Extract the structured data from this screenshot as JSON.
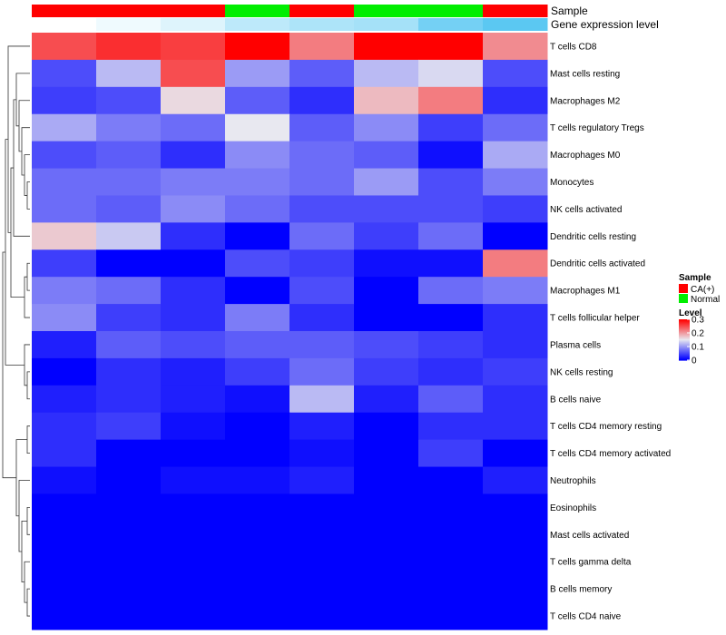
{
  "chart_data": {
    "type": "heatmap",
    "annotation_labels": [
      "Sample",
      "Gene expression level"
    ],
    "columns": [
      {
        "sample": "CA(+)",
        "expression": 0.0
      },
      {
        "sample": "CA(+)",
        "expression": 0.1
      },
      {
        "sample": "CA(+)",
        "expression": 0.2
      },
      {
        "sample": "Normal",
        "expression": 0.4
      },
      {
        "sample": "CA(+)",
        "expression": 0.5
      },
      {
        "sample": "Normal",
        "expression": 0.55
      },
      {
        "sample": "Normal",
        "expression": 0.85
      },
      {
        "sample": "CA(+)",
        "expression": 1.0
      }
    ],
    "rows": [
      "T cells CD8",
      "Mast cells resting",
      "Macrophages M2",
      "T cells regulatory  Tregs",
      "Macrophages M0",
      "Monocytes",
      "NK cells activated",
      "Dendritic cells resting",
      "Dendritic cells activated",
      "Macrophages M1",
      "T cells follicular helper",
      "Plasma cells",
      "NK cells resting",
      "B cells naive",
      "T cells CD4 memory resting",
      "T cells CD4 memory activated",
      "Neutrophils",
      "Eosinophils",
      "Mast cells activated",
      "T cells gamma delta",
      "B cells memory",
      "T cells CD4 naive"
    ],
    "values": [
      [
        0.25,
        0.27,
        0.26,
        0.3,
        0.22,
        0.3,
        0.3,
        0.21
      ],
      [
        0.05,
        0.12,
        0.25,
        0.1,
        0.06,
        0.12,
        0.14,
        0.05
      ],
      [
        0.04,
        0.05,
        0.16,
        0.06,
        0.03,
        0.18,
        0.22,
        0.03
      ],
      [
        0.11,
        0.08,
        0.07,
        0.15,
        0.06,
        0.09,
        0.04,
        0.07
      ],
      [
        0.05,
        0.06,
        0.03,
        0.09,
        0.07,
        0.06,
        0.01,
        0.11
      ],
      [
        0.07,
        0.07,
        0.08,
        0.08,
        0.07,
        0.1,
        0.05,
        0.08
      ],
      [
        0.07,
        0.06,
        0.09,
        0.07,
        0.05,
        0.05,
        0.05,
        0.04
      ],
      [
        0.17,
        0.13,
        0.03,
        0.0,
        0.07,
        0.04,
        0.07,
        0.0
      ],
      [
        0.04,
        0.0,
        0.0,
        0.05,
        0.04,
        0.01,
        0.01,
        0.22
      ],
      [
        0.08,
        0.07,
        0.03,
        0.0,
        0.05,
        0.0,
        0.07,
        0.08
      ],
      [
        0.09,
        0.04,
        0.03,
        0.08,
        0.03,
        0.0,
        0.0,
        0.03
      ],
      [
        0.02,
        0.06,
        0.05,
        0.06,
        0.06,
        0.05,
        0.04,
        0.03
      ],
      [
        0.0,
        0.03,
        0.02,
        0.04,
        0.07,
        0.04,
        0.03,
        0.04
      ],
      [
        0.02,
        0.03,
        0.02,
        0.01,
        0.12,
        0.02,
        0.06,
        0.03
      ],
      [
        0.03,
        0.04,
        0.01,
        0.0,
        0.02,
        0.0,
        0.03,
        0.03
      ],
      [
        0.03,
        0.0,
        0.0,
        0.0,
        0.01,
        0.0,
        0.04,
        0.0
      ],
      [
        0.01,
        0.0,
        0.01,
        0.01,
        0.02,
        0.0,
        0.0,
        0.02
      ],
      [
        0.0,
        0.0,
        0.0,
        0.0,
        0.0,
        0.0,
        0.0,
        0.0
      ],
      [
        0.0,
        0.0,
        0.0,
        0.0,
        0.0,
        0.0,
        0.0,
        0.0
      ],
      [
        0.0,
        0.0,
        0.0,
        0.0,
        0.0,
        0.0,
        0.0,
        0.0
      ],
      [
        0.0,
        0.0,
        0.0,
        0.0,
        0.0,
        0.0,
        0.0,
        0.0
      ],
      [
        0.0,
        0.0,
        0.0,
        0.0,
        0.0,
        0.0,
        0.0,
        0.0
      ]
    ],
    "dendrogram": "rows",
    "legend_position": "right",
    "legends": {
      "sample": {
        "title": "Sample",
        "items": [
          {
            "label": "CA(+)",
            "color": "#ff0000"
          },
          {
            "label": "Normal",
            "color": "#00ee00"
          }
        ]
      },
      "level": {
        "title": "Level",
        "min": 0,
        "max": 0.3,
        "ticks": [
          "0.3",
          "0.2",
          "0.1",
          "0"
        ]
      }
    },
    "colors": {
      "low": "#0000ff",
      "mid": "#e8e8f0",
      "high": "#ff0000",
      "expression_low": "#ffffff",
      "expression_high": "#5bc8f2",
      "text": "#000000",
      "dendrogram_line": "#333333"
    }
  }
}
